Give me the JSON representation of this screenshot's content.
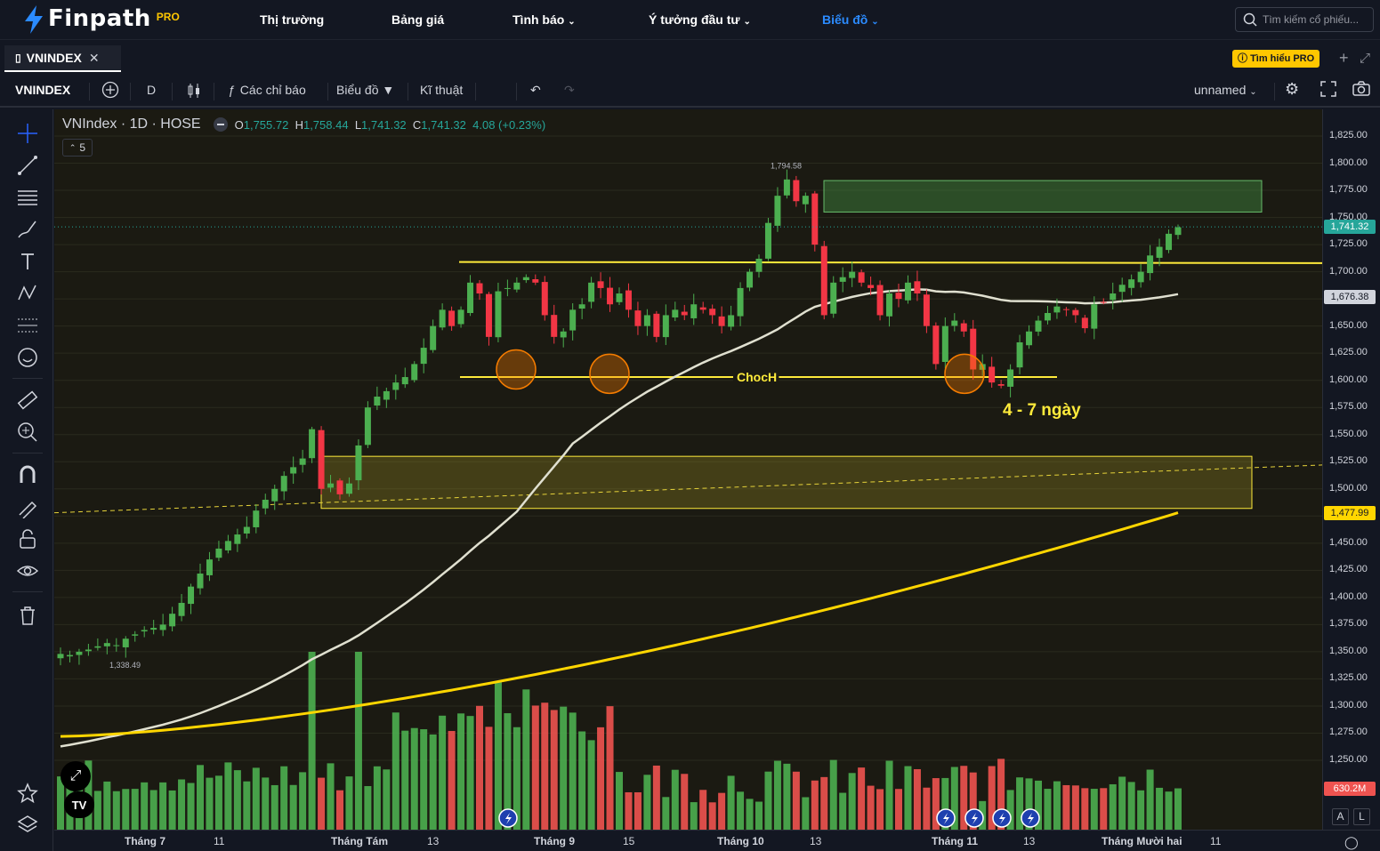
{
  "header": {
    "logo_text": "Finpath",
    "logo_badge": "PRO",
    "nav": [
      {
        "label": "Thị trường",
        "dropdown": false,
        "active": false
      },
      {
        "label": "Bảng giá",
        "dropdown": false,
        "active": false
      },
      {
        "label": "Tình báo",
        "dropdown": true,
        "active": false
      },
      {
        "label": "Ý tưởng đầu tư",
        "dropdown": true,
        "active": false
      },
      {
        "label": "Biểu đồ",
        "dropdown": true,
        "active": true
      }
    ],
    "search_placeholder": "Tìm kiếm cổ phiếu..."
  },
  "tabs": {
    "active_tab": "VNINDEX",
    "pro_link": "Tìm hiểu PRO"
  },
  "toolbar": {
    "symbol": "VNINDEX",
    "interval": "D",
    "indicators_label": "Các chỉ báo",
    "chart_label": "Biểu đồ",
    "technical_label": "Kĩ thuật",
    "layout_name": "unnamed"
  },
  "legend": {
    "title": "VNIndex · 1D · HOSE",
    "o_label": "O",
    "o": "1,755.72",
    "h_label": "H",
    "h": "1,758.44",
    "l_label": "L",
    "l": "1,741.32",
    "c_label": "C",
    "c": "1,741.32",
    "change": "4.08 (+0.23%)",
    "collapse_count": "5"
  },
  "chart_data": {
    "type": "candlestick",
    "symbol": "VNIndex",
    "interval": "1D",
    "exchange": "HOSE",
    "ylim": [
      1225,
      1835
    ],
    "y_ticks": [
      "1,825.00",
      "1,800.00",
      "1,775.00",
      "1,750.00",
      "1,725.00",
      "1,700.00",
      "1,675.00",
      "1,650.00",
      "1,625.00",
      "1,600.00",
      "1,575.00",
      "1,550.00",
      "1,525.00",
      "1,500.00",
      "1,475.00",
      "1,450.00",
      "1,425.00",
      "1,400.00",
      "1,375.00",
      "1,350.00",
      "1,325.00",
      "1,300.00",
      "1,275.00",
      "1,250.00"
    ],
    "x_ticks": [
      {
        "label": "Tháng 7",
        "bold": true
      },
      {
        "label": "11",
        "bold": false
      },
      {
        "label": "Tháng Tám",
        "bold": true
      },
      {
        "label": "13",
        "bold": false
      },
      {
        "label": "Tháng 9",
        "bold": true
      },
      {
        "label": "15",
        "bold": false
      },
      {
        "label": "Tháng 10",
        "bold": true
      },
      {
        "label": "13",
        "bold": false
      },
      {
        "label": "Tháng 11",
        "bold": true
      },
      {
        "label": "13",
        "bold": false
      },
      {
        "label": "Tháng Mười hai",
        "bold": true
      },
      {
        "label": "11",
        "bold": false
      }
    ],
    "closes": [
      1348,
      1347,
      1350,
      1352,
      1355,
      1358,
      1356,
      1362,
      1366,
      1370,
      1372,
      1375,
      1385,
      1395,
      1410,
      1422,
      1435,
      1445,
      1452,
      1458,
      1465,
      1480,
      1490,
      1500,
      1512,
      1520,
      1528,
      1555,
      1500,
      1505,
      1495,
      1505,
      1540,
      1575,
      1585,
      1590,
      1598,
      1603,
      1615,
      1630,
      1650,
      1665,
      1650,
      1665,
      1690,
      1680,
      1640,
      1682,
      1685,
      1690,
      1695,
      1690,
      1660,
      1640,
      1645,
      1665,
      1670,
      1690,
      1685,
      1670,
      1680,
      1665,
      1650,
      1660,
      1640,
      1660,
      1665,
      1660,
      1670,
      1665,
      1660,
      1650,
      1660,
      1685,
      1700,
      1712,
      1745,
      1770,
      1785,
      1765,
      1770,
      1725,
      1660,
      1690,
      1695,
      1700,
      1690,
      1685,
      1660,
      1680,
      1675,
      1690,
      1680,
      1650,
      1615,
      1650,
      1655,
      1645,
      1610,
      1615,
      1598,
      1595,
      1610,
      1635,
      1645,
      1655,
      1662,
      1668,
      1665,
      1660,
      1648,
      1670,
      1672,
      1680,
      1688,
      1693,
      1700,
      1715,
      1723,
      1735,
      1741
    ],
    "min_price_label": "1,338.49",
    "max_price_label": "1,794.58",
    "last_price": "1,741.32",
    "ma_short_value": "1,676.38",
    "ma_long_value": "1,477.99",
    "volume_label": "630.2M",
    "annotations": {
      "choch_label": "ChocH",
      "days_label": "4 - 7 ngày"
    }
  }
}
